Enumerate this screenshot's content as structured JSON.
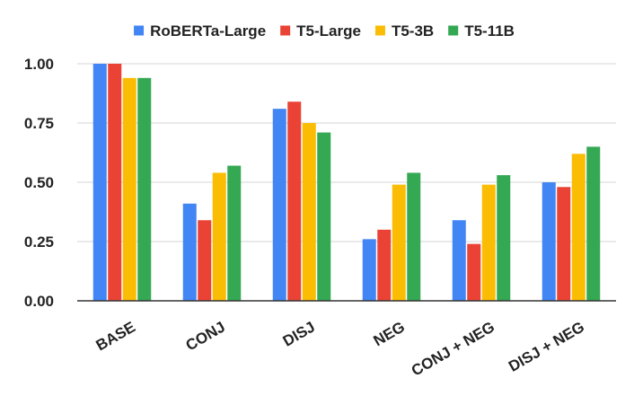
{
  "chart_data": {
    "type": "bar",
    "title": "",
    "xlabel": "",
    "ylabel": "",
    "categories": [
      "BASE",
      "CONJ",
      "DISJ",
      "NEG",
      "CONJ + NEG",
      "DISJ + NEG"
    ],
    "series": [
      {
        "name": "RoBERTa-Large",
        "color": "#4285F4",
        "values": [
          1.0,
          0.41,
          0.81,
          0.26,
          0.34,
          0.5
        ]
      },
      {
        "name": "T5-Large",
        "color": "#EA4335",
        "values": [
          1.0,
          0.34,
          0.84,
          0.3,
          0.24,
          0.48
        ]
      },
      {
        "name": "T5-3B",
        "color": "#FBBC04",
        "values": [
          0.94,
          0.54,
          0.75,
          0.49,
          0.49,
          0.62
        ]
      },
      {
        "name": "T5-11B",
        "color": "#34A853",
        "values": [
          0.94,
          0.57,
          0.71,
          0.54,
          0.53,
          0.65
        ]
      }
    ],
    "ylim": [
      0,
      1.0
    ],
    "yticks": [
      "0.00",
      "0.25",
      "0.50",
      "0.75",
      "1.00"
    ],
    "grid": true,
    "legend": "top-center"
  }
}
